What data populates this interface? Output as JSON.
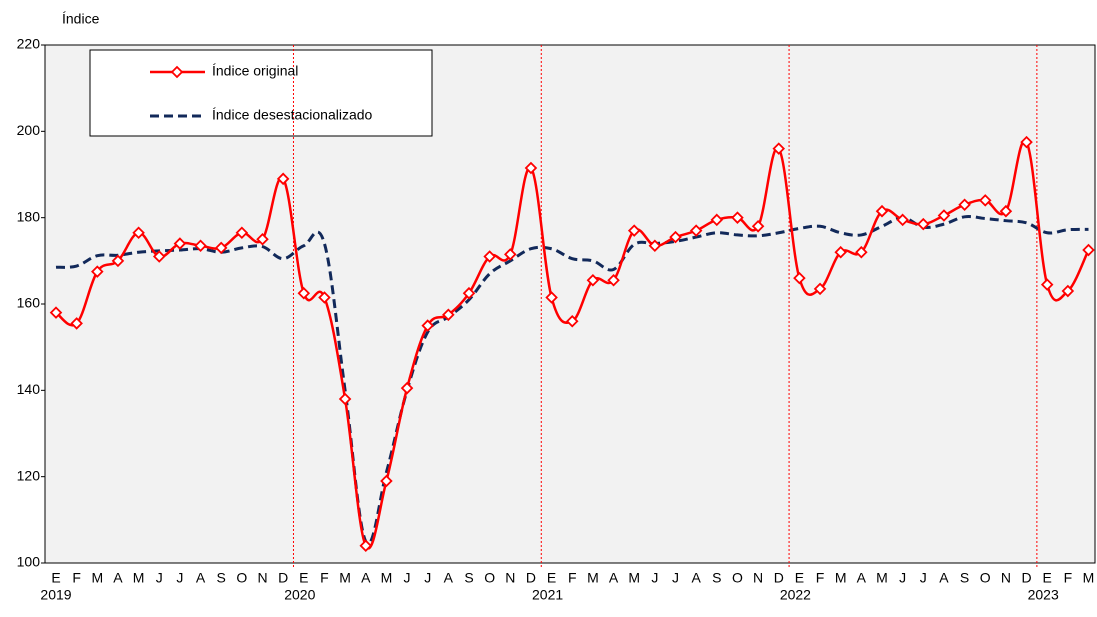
{
  "chart_data": {
    "type": "line",
    "ylabel": "Índice",
    "categories": [
      "E",
      "F",
      "M",
      "A",
      "M",
      "J",
      "J",
      "A",
      "S",
      "O",
      "N",
      "D",
      "E",
      "F",
      "M",
      "A",
      "M",
      "J",
      "J",
      "A",
      "S",
      "O",
      "N",
      "D",
      "E",
      "F",
      "M",
      "A",
      "M",
      "J",
      "J",
      "A",
      "S",
      "O",
      "N",
      "D",
      "E",
      "F",
      "M",
      "A",
      "M",
      "J",
      "J",
      "A",
      "S",
      "O",
      "N",
      "D",
      "E",
      "F",
      "M"
    ],
    "years": [
      "2019",
      "2020",
      "2021",
      "2022",
      "2023"
    ],
    "ylim": [
      100,
      220
    ],
    "yticks": [
      100,
      120,
      140,
      160,
      180,
      200,
      220
    ],
    "series": [
      {
        "name": "Índice original",
        "color": "#ff0000",
        "values": [
          158,
          155.5,
          167.5,
          170,
          176.5,
          171,
          174,
          173.5,
          173,
          176.5,
          175,
          189,
          162.5,
          161.5,
          138,
          104,
          119,
          140.5,
          155,
          157.5,
          162.5,
          171,
          171.5,
          191.5,
          161.5,
          156,
          165.5,
          165.5,
          177,
          173.5,
          175.5,
          177,
          179.5,
          180,
          178,
          196,
          166,
          163.5,
          172,
          172,
          181.5,
          179.5,
          178.5,
          180.5,
          183,
          184,
          181.5,
          197.5,
          164.5,
          163,
          172.5
        ]
      },
      {
        "name": "Índice desestacionalizado",
        "color": "#12295a",
        "values": [
          168.5,
          168.8,
          171.2,
          171.3,
          172,
          172.3,
          172.5,
          172.8,
          172,
          173,
          173.3,
          170.5,
          173.5,
          174,
          140,
          105,
          121,
          140,
          153.5,
          157,
          161,
          167,
          170,
          172.8,
          172.8,
          170.5,
          170,
          168,
          173.8,
          174,
          174.5,
          175.5,
          176.5,
          176,
          175.8,
          176.5,
          177.5,
          178,
          176.5,
          176,
          178,
          180,
          177.8,
          178.5,
          180.2,
          179.8,
          179.3,
          178.8,
          176.5,
          177.2,
          177.3
        ]
      }
    ]
  }
}
